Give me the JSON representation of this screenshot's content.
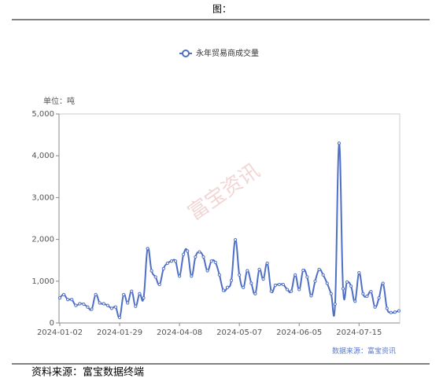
{
  "header": "图：",
  "footer": "资料来源：富宝数据终端",
  "chart_data": {
    "type": "line",
    "unit_label": "单位：吨",
    "source_note": "数据来源：富宝资讯",
    "watermark": "富宝资讯",
    "categories": [
      "2024-01-02",
      null,
      null,
      null,
      null,
      null,
      null,
      null,
      null,
      null,
      null,
      null,
      null,
      null,
      null,
      "2024-01-29",
      null,
      null,
      null,
      null,
      null,
      null,
      null,
      null,
      null,
      null,
      null,
      null,
      null,
      null,
      "2024-04-08",
      null,
      null,
      null,
      null,
      null,
      null,
      null,
      null,
      null,
      null,
      null,
      null,
      null,
      null,
      "2024-05-07",
      null,
      null,
      null,
      null,
      null,
      null,
      null,
      null,
      null,
      null,
      null,
      null,
      null,
      null,
      "2024-06-05",
      null,
      null,
      null,
      null,
      null,
      null,
      null,
      null,
      null,
      null,
      null,
      null,
      null,
      null,
      "2024-07-15",
      null,
      null,
      null,
      null,
      null,
      null,
      null,
      null,
      null,
      null
    ],
    "series": [
      {
        "name": "永年贸易商成交量",
        "color": "#4f6fc6",
        "values": [
          600,
          680,
          560,
          560,
          420,
          460,
          450,
          380,
          330,
          680,
          480,
          460,
          420,
          350,
          380,
          130,
          680,
          480,
          760,
          400,
          700,
          600,
          1780,
          1250,
          1100,
          920,
          1300,
          1430,
          1480,
          1480,
          1120,
          1640,
          1720,
          1120,
          1580,
          1700,
          1580,
          1250,
          1480,
          1450,
          1150,
          780,
          850,
          1020,
          1990,
          1150,
          850,
          1250,
          950,
          700,
          1280,
          1050,
          1430,
          760,
          900,
          920,
          920,
          800,
          760,
          1150,
          800,
          1260,
          1100,
          650,
          1000,
          1280,
          1150,
          950,
          700,
          450,
          4300,
          820,
          980,
          880,
          520,
          1200,
          700,
          640,
          750,
          380,
          600,
          950,
          350,
          250,
          260,
          290
        ]
      }
    ],
    "ylim": [
      0,
      5000
    ],
    "yticks": [
      0,
      {
        "value": 1000,
        "label": "1,000"
      },
      {
        "value": 2000,
        "label": "2,000"
      },
      {
        "value": 3000,
        "label": "3,000"
      },
      {
        "value": 4000,
        "label": "4,000"
      },
      {
        "value": 5000,
        "label": "5,000"
      }
    ],
    "grid": false
  }
}
